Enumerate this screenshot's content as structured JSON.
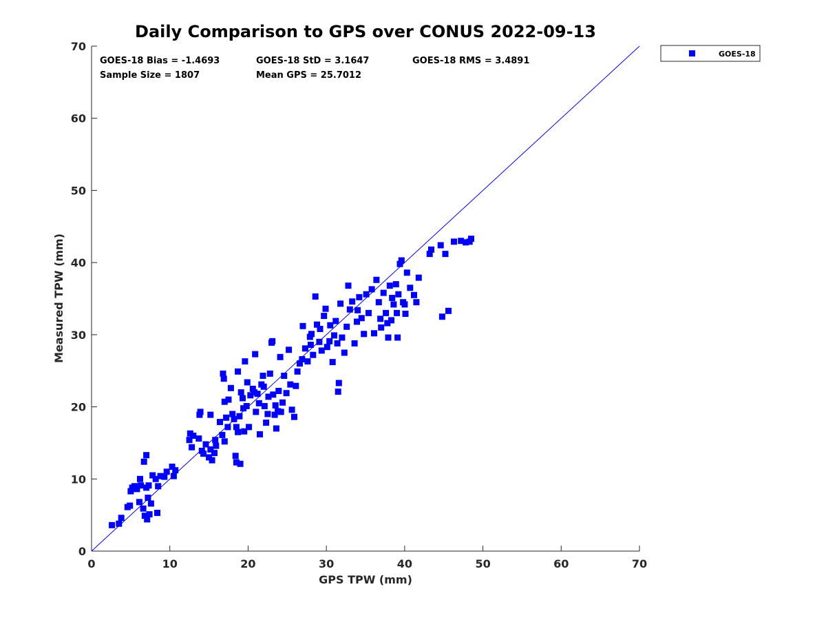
{
  "chart_data": {
    "type": "scatter",
    "title": "Daily Comparison to GPS over CONUS 2022-09-13",
    "xlabel": "GPS TPW (mm)",
    "ylabel": "Measured TPW (mm)",
    "xlim": [
      0,
      70
    ],
    "ylim": [
      0,
      70
    ],
    "xticks": [
      0,
      10,
      20,
      30,
      40,
      50,
      60,
      70
    ],
    "yticks": [
      0,
      10,
      20,
      30,
      40,
      50,
      60,
      70
    ],
    "grid": false,
    "legend_position": "outside top-right",
    "reference_line": {
      "x": [
        0,
        70
      ],
      "y": [
        0,
        70
      ],
      "color": "#0000ff"
    },
    "stats": [
      "GOES-18 Bias = -1.4693",
      "GOES-18 StD = 3.1647",
      "GOES-18 RMS = 3.4891",
      "Sample Size = 1807",
      "Mean GPS = 25.7012"
    ],
    "series": [
      {
        "name": "GOES-18",
        "color": "#0000ff",
        "marker": "square",
        "points": [
          [
            2.6,
            3.6
          ],
          [
            3.5,
            3.8
          ],
          [
            3.8,
            4.6
          ],
          [
            4.6,
            6.1
          ],
          [
            4.9,
            6.3
          ],
          [
            5.0,
            8.3
          ],
          [
            5.2,
            8.8
          ],
          [
            5.5,
            9.0
          ],
          [
            5.8,
            8.6
          ],
          [
            6.3,
            9.1
          ],
          [
            6.1,
            6.8
          ],
          [
            6.6,
            5.9
          ],
          [
            6.2,
            10.0
          ],
          [
            6.7,
            12.4
          ],
          [
            7.0,
            13.3
          ],
          [
            6.8,
            4.9
          ],
          [
            7.1,
            4.4
          ],
          [
            7.4,
            5.1
          ],
          [
            7.6,
            6.6
          ],
          [
            7.2,
            7.4
          ],
          [
            7.0,
            8.8
          ],
          [
            7.3,
            9.1
          ],
          [
            7.8,
            10.5
          ],
          [
            8.2,
            10.0
          ],
          [
            8.5,
            9.0
          ],
          [
            8.4,
            5.3
          ],
          [
            8.8,
            10.4
          ],
          [
            9.3,
            10.3
          ],
          [
            9.6,
            11.0
          ],
          [
            10.3,
            11.7
          ],
          [
            10.5,
            10.4
          ],
          [
            10.7,
            11.2
          ],
          [
            12.5,
            15.4
          ],
          [
            12.6,
            16.3
          ],
          [
            12.8,
            14.4
          ],
          [
            13.8,
            18.9
          ],
          [
            13.9,
            19.3
          ],
          [
            13.7,
            15.6
          ],
          [
            14.1,
            13.9
          ],
          [
            14.6,
            14.8
          ],
          [
            14.3,
            13.5
          ],
          [
            15.0,
            13.0
          ],
          [
            15.2,
            14.1
          ],
          [
            15.4,
            12.6
          ],
          [
            15.7,
            13.6
          ],
          [
            15.9,
            14.6
          ],
          [
            15.2,
            18.9
          ],
          [
            16.8,
            24.6
          ],
          [
            16.9,
            23.9
          ],
          [
            17.0,
            20.7
          ],
          [
            17.2,
            18.5
          ],
          [
            17.4,
            17.2
          ],
          [
            16.7,
            16.1
          ],
          [
            17.0,
            15.2
          ],
          [
            17.8,
            22.6
          ],
          [
            18.0,
            19.0
          ],
          [
            18.2,
            18.3
          ],
          [
            18.5,
            17.2
          ],
          [
            18.7,
            16.5
          ],
          [
            18.4,
            13.2
          ],
          [
            18.5,
            12.3
          ],
          [
            19.0,
            12.1
          ],
          [
            18.7,
            24.9
          ],
          [
            19.1,
            22.0
          ],
          [
            19.3,
            21.2
          ],
          [
            19.6,
            26.3
          ],
          [
            19.8,
            20.1
          ],
          [
            19.9,
            23.4
          ],
          [
            20.1,
            17.2
          ],
          [
            19.5,
            16.6
          ],
          [
            20.3,
            21.6
          ],
          [
            20.6,
            22.5
          ],
          [
            20.9,
            27.3
          ],
          [
            21.0,
            19.3
          ],
          [
            21.2,
            21.8
          ],
          [
            21.5,
            16.2
          ],
          [
            21.7,
            23.1
          ],
          [
            21.9,
            24.3
          ],
          [
            22.1,
            20.1
          ],
          [
            22.3,
            17.8
          ],
          [
            22.5,
            19.0
          ],
          [
            22.8,
            24.6
          ],
          [
            23.0,
            28.9
          ],
          [
            23.1,
            29.1
          ],
          [
            23.2,
            21.7
          ],
          [
            23.4,
            18.9
          ],
          [
            23.6,
            17.0
          ],
          [
            23.8,
            19.4
          ],
          [
            23.9,
            22.2
          ],
          [
            24.1,
            26.9
          ],
          [
            24.4,
            20.6
          ],
          [
            24.6,
            24.3
          ],
          [
            24.9,
            21.9
          ],
          [
            25.2,
            27.9
          ],
          [
            25.6,
            19.6
          ],
          [
            25.9,
            18.6
          ],
          [
            26.1,
            22.9
          ],
          [
            26.3,
            24.9
          ],
          [
            26.6,
            26.0
          ],
          [
            27.0,
            31.2
          ],
          [
            27.3,
            28.1
          ],
          [
            27.6,
            26.3
          ],
          [
            27.9,
            29.7
          ],
          [
            28.1,
            30.1
          ],
          [
            28.3,
            27.2
          ],
          [
            28.6,
            35.3
          ],
          [
            28.8,
            31.4
          ],
          [
            29.1,
            29.0
          ],
          [
            29.4,
            27.8
          ],
          [
            29.7,
            32.6
          ],
          [
            29.9,
            33.6
          ],
          [
            30.1,
            28.3
          ],
          [
            30.4,
            29.1
          ],
          [
            30.8,
            26.2
          ],
          [
            31.2,
            31.9
          ],
          [
            31.4,
            28.8
          ],
          [
            31.5,
            22.1
          ],
          [
            31.6,
            23.3
          ],
          [
            31.8,
            34.3
          ],
          [
            32.0,
            29.6
          ],
          [
            32.3,
            27.5
          ],
          [
            32.6,
            31.1
          ],
          [
            32.8,
            36.8
          ],
          [
            33.0,
            33.5
          ],
          [
            33.3,
            34.6
          ],
          [
            33.6,
            28.8
          ],
          [
            33.9,
            31.8
          ],
          [
            34.2,
            35.2
          ],
          [
            34.5,
            32.3
          ],
          [
            34.8,
            30.1
          ],
          [
            35.1,
            35.6
          ],
          [
            35.4,
            33.0
          ],
          [
            35.8,
            36.3
          ],
          [
            36.1,
            30.2
          ],
          [
            36.4,
            37.6
          ],
          [
            36.7,
            34.5
          ],
          [
            37.0,
            31.0
          ],
          [
            37.3,
            35.8
          ],
          [
            37.6,
            33.0
          ],
          [
            37.9,
            29.6
          ],
          [
            38.1,
            36.8
          ],
          [
            38.3,
            32.0
          ],
          [
            38.6,
            34.2
          ],
          [
            38.9,
            37.0
          ],
          [
            39.1,
            29.6
          ],
          [
            39.2,
            35.6
          ],
          [
            39.4,
            39.8
          ],
          [
            39.6,
            40.3
          ],
          [
            39.8,
            34.5
          ],
          [
            40.1,
            32.9
          ],
          [
            40.3,
            38.6
          ],
          [
            40.7,
            36.5
          ],
          [
            41.2,
            35.5
          ],
          [
            41.5,
            34.5
          ],
          [
            41.8,
            37.9
          ],
          [
            43.2,
            41.2
          ],
          [
            43.4,
            41.8
          ],
          [
            44.6,
            42.4
          ],
          [
            44.8,
            32.5
          ],
          [
            45.2,
            41.2
          ],
          [
            45.6,
            33.3
          ],
          [
            46.3,
            42.9
          ],
          [
            47.2,
            43.0
          ],
          [
            47.8,
            42.8
          ],
          [
            48.3,
            42.9
          ],
          [
            48.5,
            43.3
          ],
          [
            17.5,
            21.0
          ],
          [
            18.9,
            18.7
          ],
          [
            19.4,
            19.8
          ],
          [
            20.8,
            22.0
          ],
          [
            21.4,
            20.5
          ],
          [
            22.0,
            22.8
          ],
          [
            22.6,
            21.4
          ],
          [
            23.5,
            20.2
          ],
          [
            24.2,
            19.3
          ],
          [
            16.4,
            17.9
          ],
          [
            15.8,
            15.4
          ],
          [
            13.0,
            16.0
          ],
          [
            29.2,
            30.8
          ],
          [
            30.5,
            31.3
          ],
          [
            31.0,
            29.9
          ],
          [
            34.0,
            33.4
          ],
          [
            36.9,
            32.2
          ],
          [
            37.8,
            31.6
          ],
          [
            38.4,
            35.1
          ],
          [
            39.0,
            33.0
          ],
          [
            40.0,
            34.2
          ],
          [
            26.9,
            26.6
          ],
          [
            28.0,
            28.6
          ],
          [
            25.4,
            23.1
          ]
        ]
      }
    ]
  }
}
